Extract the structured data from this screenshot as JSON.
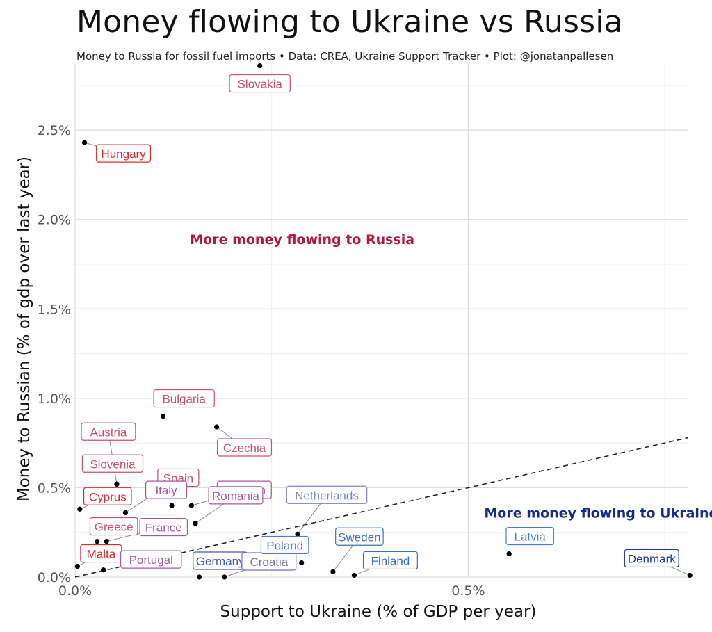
{
  "title": "Money flowing to Ukraine vs Russia",
  "subtitle": "Money to Russia for fossil fuel imports • Data: CREA, Ukraine Support Tracker • Plot: @jonatanpallesen",
  "chart_data": {
    "type": "scatter",
    "title": "Money flowing to Ukraine vs Russia",
    "xlabel": "Support to Ukraine (% of GDP per year)",
    "ylabel": "Money to Russian (% of gdp over last year)",
    "xlim": [
      0,
      0.78
    ],
    "ylim": [
      0,
      2.87
    ],
    "x_ticks": [
      {
        "v": 0,
        "label": "0.0%"
      },
      {
        "v": 0.5,
        "label": "0.5%"
      }
    ],
    "y_ticks": [
      {
        "v": 0,
        "label": "0.0%"
      },
      {
        "v": 0.5,
        "label": "0.5%"
      },
      {
        "v": 1.0,
        "label": "1.0%"
      },
      {
        "v": 1.5,
        "label": "1.5%"
      },
      {
        "v": 2.0,
        "label": "2.0%"
      },
      {
        "v": 2.5,
        "label": "2.5%"
      }
    ],
    "grid": true,
    "reference_line": {
      "style": "dashed",
      "slope": 1
    },
    "annotations": [
      {
        "text": "More money flowing to Russia",
        "x": 0.25,
        "y": 1.89,
        "color": "#b5173b"
      },
      {
        "text": "More money flowing to Ukraine",
        "x": 0.63,
        "y": 0.36,
        "color": "#1a2a8a"
      }
    ],
    "points": [
      {
        "name": "Slovakia",
        "x": 0.235,
        "y": 2.86,
        "color": "#c9506e"
      },
      {
        "name": "Hungary",
        "x": 0.012,
        "y": 2.43,
        "color": "#e0282c"
      },
      {
        "name": "Bulgaria",
        "x": 0.112,
        "y": 0.9,
        "color": "#c9506e"
      },
      {
        "name": "Czechia",
        "x": 0.18,
        "y": 0.84,
        "color": "#c9506e"
      },
      {
        "name": "Austria",
        "x": 0.053,
        "y": 0.52,
        "color": "#c9506e"
      },
      {
        "name": "Slovenia",
        "x": 0.053,
        "y": 0.52,
        "color": "#c9506e"
      },
      {
        "name": "Spain",
        "x": 0.064,
        "y": 0.36,
        "color": "#c9506e"
      },
      {
        "name": "Cyprus",
        "x": 0.006,
        "y": 0.38,
        "color": "#e0282c"
      },
      {
        "name": "Italy",
        "x": 0.123,
        "y": 0.4,
        "color": "#a65a9e"
      },
      {
        "name": "Belgium",
        "x": 0.148,
        "y": 0.4,
        "color": "#a65a9e"
      },
      {
        "name": "Greece",
        "x": 0.028,
        "y": 0.2,
        "color": "#c9506e"
      },
      {
        "name": "France",
        "x": 0.04,
        "y": 0.2,
        "color": "#a65a9e"
      },
      {
        "name": "Romania",
        "x": 0.153,
        "y": 0.3,
        "color": "#a65a9e"
      },
      {
        "name": "Malta",
        "x": 0.003,
        "y": 0.06,
        "color": "#e0282c"
      },
      {
        "name": "Portugal",
        "x": 0.063,
        "y": 0.12,
        "color": "#a65a9e"
      },
      {
        "name": "Germany",
        "x": 0.158,
        "y": 0.0,
        "color": "#4458b0"
      },
      {
        "name": "Croatia",
        "x": 0.19,
        "y": 0.0,
        "color": "#7a6fb8"
      },
      {
        "name": "Netherlands",
        "x": 0.283,
        "y": 0.24,
        "color": "#7a86c8"
      },
      {
        "name": "Poland",
        "x": 0.288,
        "y": 0.08,
        "color": "#4f7bc8"
      },
      {
        "name": "Sweden",
        "x": 0.328,
        "y": 0.03,
        "color": "#3d6dbb"
      },
      {
        "name": "Finland",
        "x": 0.355,
        "y": 0.01,
        "color": "#3d6dbb"
      },
      {
        "name": "Latvia",
        "x": 0.552,
        "y": 0.13,
        "color": "#4f7bc8"
      },
      {
        "name": "Denmark",
        "x": 0.782,
        "y": 0.01,
        "color": "#1f3a96"
      },
      {
        "name": "",
        "x": 0.036,
        "y": 0.04,
        "color": "#000000"
      }
    ]
  }
}
